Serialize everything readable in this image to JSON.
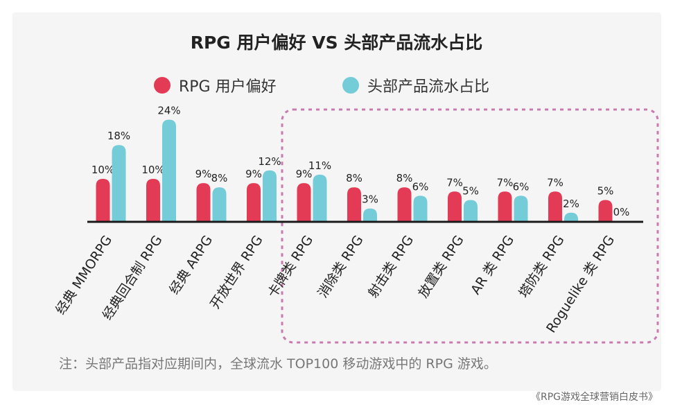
{
  "colors": {
    "user_pref": "#e33a55",
    "revenue_share": "#74ccd8",
    "axis": "#1a1a1a",
    "highlight_box": "#c97bb0"
  },
  "legend": [
    {
      "label": "RPG 用户偏好",
      "color": "#e33a55"
    },
    {
      "label": "头部产品流水占比",
      "color": "#74ccd8"
    }
  ],
  "note": "注：头部产品指对应期间内，全球流水 TOP100 移动游戏中的 RPG 游戏。",
  "source": "《RPG游戏全球营销白皮书》",
  "chart_data": {
    "type": "bar",
    "title": "RPG 用户偏好 VS 头部产品流水占比",
    "xlabel": "",
    "ylabel": "",
    "ylim": [
      0,
      24
    ],
    "grid": false,
    "legend_position": "top",
    "categories": [
      "经典 MMORPG",
      "经典回合制 RPG",
      "经典 ARPG",
      "开放世界 RPG",
      "卡牌类 RPG",
      "消除类 RPG",
      "射击类 RPG",
      "放置类 RPG",
      "AR 类 RPG",
      "塔防类 RPG",
      "Roguelike 类 RPG"
    ],
    "series": [
      {
        "name": "RPG 用户偏好",
        "values": [
          10,
          10,
          9,
          9,
          9,
          8,
          8,
          7,
          7,
          7,
          5
        ],
        "labels": [
          "10%",
          "10%",
          "9%",
          "9%",
          "9%",
          "8%",
          "8%",
          "7%",
          "7%",
          "7%",
          "5%"
        ]
      },
      {
        "name": "头部产品流水占比",
        "values": [
          18,
          24,
          8,
          12,
          11,
          3,
          6,
          5,
          6,
          2,
          0
        ],
        "labels": [
          "18%",
          "24%",
          "8%",
          "12%",
          "11%",
          "3%",
          "6%",
          "5%",
          "6%",
          "2%",
          "0%"
        ]
      }
    ],
    "highlighted_categories": [
      "卡牌类 RPG",
      "消除类 RPG",
      "射击类 RPG",
      "放置类 RPG",
      "AR 类 RPG",
      "塔防类 RPG",
      "Roguelike 类 RPG"
    ]
  }
}
